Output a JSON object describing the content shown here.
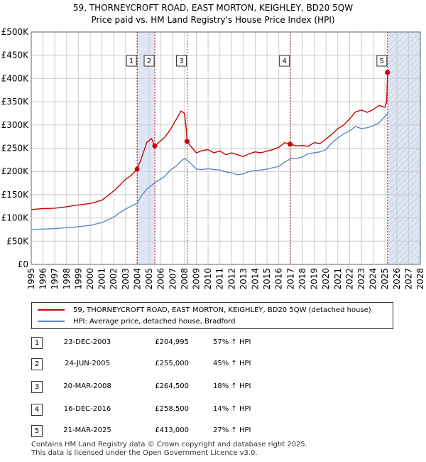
{
  "header": {
    "title_line1": "59, THORNEYCROFT ROAD, EAST MORTON, KEIGHLEY, BD20 5QW",
    "title_line2": "Price paid vs. HM Land Registry's House Price Index (HPI)"
  },
  "colors": {
    "property": "#cc0000",
    "hpi": "#5b8ac6",
    "shade": "#dde6f5",
    "grid": "#cccccc",
    "marker_line": "#cc0000"
  },
  "chart_data": {
    "type": "line",
    "xlim": [
      1995,
      2028
    ],
    "ylim": [
      0,
      500000
    ],
    "x_ticks": [
      "1995",
      "1996",
      "1997",
      "1998",
      "1999",
      "2000",
      "2001",
      "2002",
      "2003",
      "2004",
      "2005",
      "2006",
      "2007",
      "2008",
      "2009",
      "2010",
      "2011",
      "2012",
      "2013",
      "2014",
      "2015",
      "2016",
      "2017",
      "2018",
      "2019",
      "2020",
      "2021",
      "2022",
      "2023",
      "2024",
      "2025",
      "2026",
      "2027",
      "2028"
    ],
    "y_ticks": [
      {
        "value": 0,
        "label": "£0"
      },
      {
        "value": 50000,
        "label": "£50K"
      },
      {
        "value": 100000,
        "label": "£100K"
      },
      {
        "value": 150000,
        "label": "£150K"
      },
      {
        "value": 200000,
        "label": "£200K"
      },
      {
        "value": 250000,
        "label": "£250K"
      },
      {
        "value": 300000,
        "label": "£300K"
      },
      {
        "value": 350000,
        "label": "£350K"
      },
      {
        "value": 400000,
        "label": "£400K"
      },
      {
        "value": 450000,
        "label": "£450K"
      },
      {
        "value": 500000,
        "label": "£500K"
      }
    ],
    "shaded_ranges": [
      [
        2003.98,
        2005.48
      ],
      [
        2025.22,
        2028
      ]
    ],
    "hatch_start": 2025.22,
    "series": [
      {
        "name": "59, THORNEYCROFT ROAD, EAST MORTON, KEIGHLEY, BD20 5QW (detached house)",
        "x": [
          1995.0,
          1996.0,
          1997.0,
          1998.0,
          1999.0,
          2000.0,
          2001.0,
          2002.0,
          2002.5,
          2003.0,
          2003.5,
          2003.98,
          2004.3,
          2004.8,
          2005.2,
          2005.48,
          2005.8,
          2006.3,
          2006.8,
          2007.3,
          2007.7,
          2008.0,
          2008.15,
          2008.22,
          2008.5,
          2009.0,
          2009.5,
          2010.0,
          2010.5,
          2011.0,
          2011.5,
          2012.0,
          2012.5,
          2013.0,
          2013.5,
          2014.0,
          2014.5,
          2015.0,
          2015.5,
          2016.0,
          2016.5,
          2016.96,
          2017.5,
          2018.0,
          2018.5,
          2019.0,
          2019.5,
          2020.0,
          2020.5,
          2021.0,
          2021.5,
          2022.0,
          2022.5,
          2023.0,
          2023.5,
          2024.0,
          2024.5,
          2025.0,
          2025.15,
          2025.22
        ],
        "y": [
          118000,
          120000,
          121000,
          124000,
          128000,
          131000,
          138000,
          158000,
          170000,
          183000,
          192000,
          204995,
          225000,
          262000,
          271000,
          255000,
          262000,
          273000,
          290000,
          312000,
          330000,
          325000,
          290000,
          264500,
          255000,
          240000,
          245000,
          247000,
          240000,
          244000,
          236000,
          240000,
          236000,
          232000,
          238000,
          242000,
          240000,
          244000,
          247000,
          252000,
          262000,
          258500,
          255000,
          256000,
          254000,
          262000,
          260000,
          270000,
          280000,
          292000,
          300000,
          313000,
          328000,
          332000,
          327000,
          333000,
          342000,
          338000,
          350000,
          413000
        ]
      },
      {
        "name": "HPI: Average price, detached house, Bradford",
        "x": [
          1995.0,
          1996.0,
          1997.0,
          1998.0,
          1999.0,
          2000.0,
          2001.0,
          2002.0,
          2002.5,
          2003.0,
          2003.5,
          2003.98,
          2004.3,
          2004.8,
          2005.2,
          2005.48,
          2005.8,
          2006.3,
          2006.8,
          2007.3,
          2007.7,
          2008.0,
          2008.22,
          2008.5,
          2009.0,
          2009.5,
          2010.0,
          2010.5,
          2011.0,
          2011.5,
          2012.0,
          2012.5,
          2013.0,
          2013.5,
          2014.0,
          2014.5,
          2015.0,
          2015.5,
          2016.0,
          2016.5,
          2016.96,
          2017.5,
          2018.0,
          2018.5,
          2019.0,
          2019.5,
          2020.0,
          2020.5,
          2021.0,
          2021.5,
          2022.0,
          2022.5,
          2023.0,
          2023.5,
          2024.0,
          2024.5,
          2025.0,
          2025.22
        ],
        "y": [
          75000,
          76000,
          77000,
          79000,
          81000,
          84000,
          90000,
          102000,
          111000,
          119000,
          126000,
          131000,
          146000,
          162000,
          170000,
          176000,
          181000,
          189000,
          203000,
          212000,
          222000,
          228000,
          224000,
          218000,
          205000,
          204000,
          206000,
          204000,
          203000,
          199000,
          197000,
          193000,
          195000,
          200000,
          202000,
          203000,
          205000,
          208000,
          211000,
          220000,
          227000,
          228000,
          231000,
          238000,
          240000,
          242000,
          247000,
          262000,
          272000,
          281000,
          287000,
          297000,
          292000,
          294000,
          298000,
          305000,
          318000,
          325000
        ]
      }
    ],
    "sale_markers": [
      {
        "label": "1",
        "x": 2003.98,
        "y": 204995
      },
      {
        "label": "2",
        "x": 2005.48,
        "y": 255000
      },
      {
        "label": "3",
        "x": 2008.22,
        "y": 264500
      },
      {
        "label": "4",
        "x": 2016.96,
        "y": 258500
      },
      {
        "label": "5",
        "x": 2025.22,
        "y": 413000
      }
    ]
  },
  "legend": {
    "property_label": "59, THORNEYCROFT ROAD, EAST MORTON, KEIGHLEY, BD20 5QW (detached house)",
    "hpi_label": "HPI: Average price, detached house, Bradford"
  },
  "sales": [
    {
      "num": "1",
      "date": "23-DEC-2003",
      "price": "£204,995",
      "hpi": "57% ↑ HPI"
    },
    {
      "num": "2",
      "date": "24-JUN-2005",
      "price": "£255,000",
      "hpi": "45% ↑ HPI"
    },
    {
      "num": "3",
      "date": "20-MAR-2008",
      "price": "£264,500",
      "hpi": "18% ↑ HPI"
    },
    {
      "num": "4",
      "date": "16-DEC-2016",
      "price": "£258,500",
      "hpi": "14% ↑ HPI"
    },
    {
      "num": "5",
      "date": "21-MAR-2025",
      "price": "£413,000",
      "hpi": "27% ↑ HPI"
    }
  ],
  "footer": {
    "line1": "Contains HM Land Registry data © Crown copyright and database right 2025.",
    "line2": "This data is licensed under the Open Government Licence v3.0."
  }
}
